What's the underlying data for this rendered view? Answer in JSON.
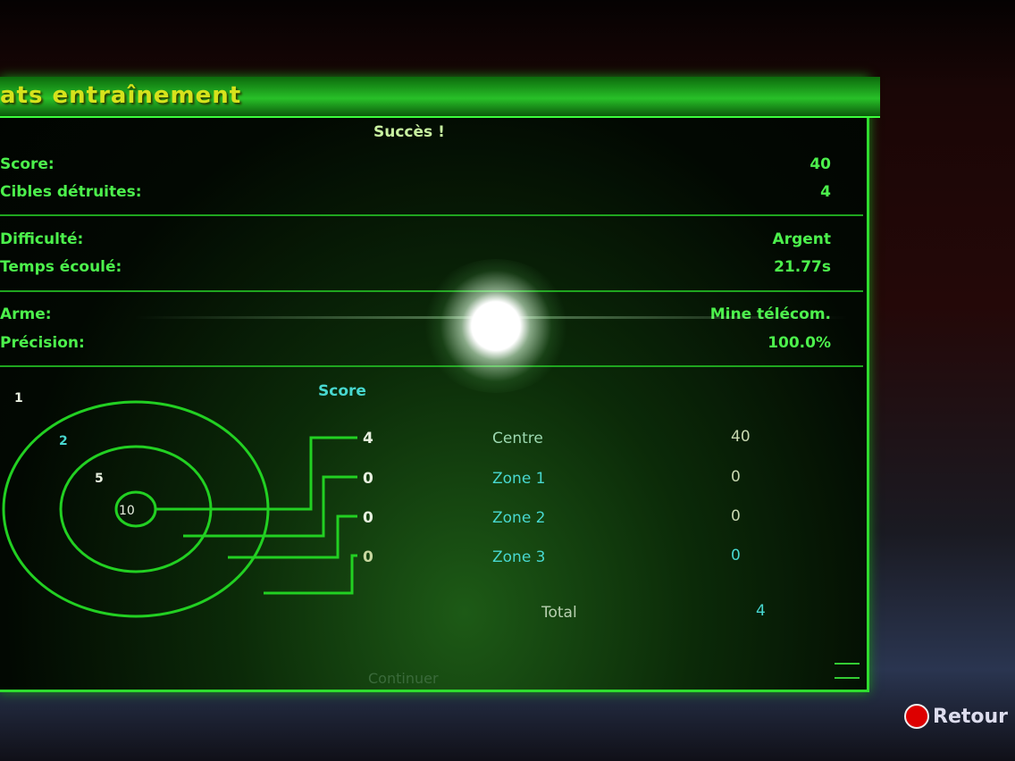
{
  "header": {
    "title": "ats entraînement"
  },
  "result": "Succès !",
  "stats": [
    {
      "label": "Score:",
      "value": "40"
    },
    {
      "label": "Cibles détruites:",
      "value": "4"
    },
    {
      "label": "Difficulté:",
      "value": "Argent"
    },
    {
      "label": "Temps écoulé:",
      "value": "21.77s"
    },
    {
      "label": "Arme:",
      "value": "Mine télécom."
    },
    {
      "label": "Précision:",
      "value": "100.0%"
    }
  ],
  "target": {
    "ring_labels": [
      "1",
      "2",
      "5",
      "10"
    ]
  },
  "breakdown": {
    "header": "Score",
    "rows": [
      {
        "hits": "4",
        "zone": "Centre",
        "points": "40"
      },
      {
        "hits": "0",
        "zone": "Zone 1",
        "points": "0"
      },
      {
        "hits": "0",
        "zone": "Zone 2",
        "points": "0"
      },
      {
        "hits": "0",
        "zone": "Zone 3",
        "points": "0"
      }
    ],
    "total_label": "Total",
    "total_value": "4"
  },
  "footer": {
    "continue_label": "Continuer",
    "back_label": "Retour",
    "back_button_color": "#dd0000"
  },
  "colors": {
    "accent": "#2fdc2f",
    "title": "#d6e21c",
    "label": "#4cf04c",
    "zone": "#48d8d0"
  }
}
